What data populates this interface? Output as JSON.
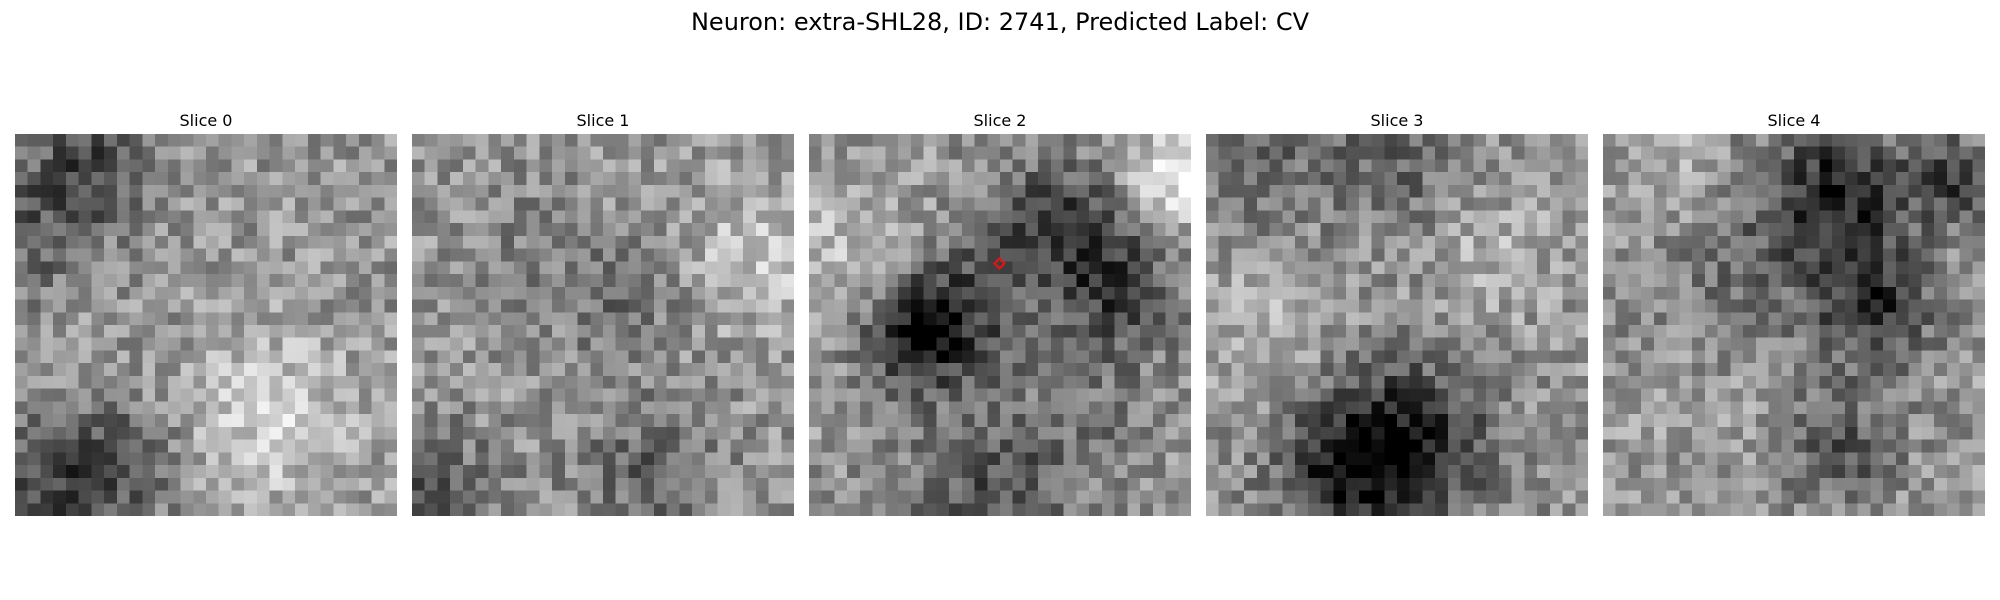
{
  "figure": {
    "title": "Neuron: extra-SHL28, ID: 2741, Predicted Label: CV"
  },
  "panels": [
    {
      "title": "Slice 0"
    },
    {
      "title": "Slice 1"
    },
    {
      "title": "Slice 2"
    },
    {
      "title": "Slice 3"
    },
    {
      "title": "Slice 4"
    }
  ],
  "colormap": "grayscale",
  "marker": {
    "panel": 2,
    "shape": "diamond",
    "color": "#ee1111"
  }
}
